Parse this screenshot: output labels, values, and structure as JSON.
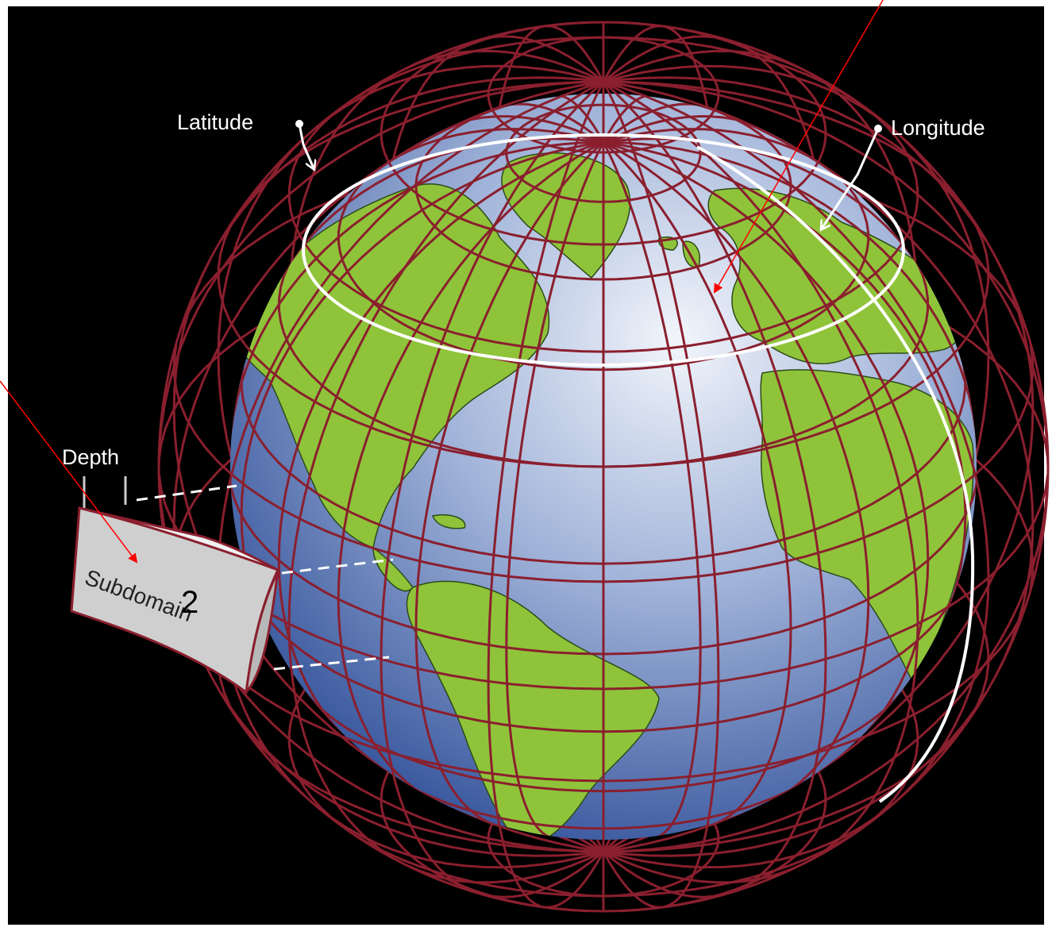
{
  "labels": {
    "latitude": "Latitude",
    "longitude": "Longitude",
    "depth": "Depth",
    "subdomain": "Subdomain",
    "subdomain_number": "2"
  },
  "colors": {
    "background": "#000000",
    "grid": "#8a1f2e",
    "land": "#8fc43a",
    "ocean_light": "#e8eef8",
    "ocean_dark": "#2e4f9a",
    "highlight_ring": "#ffffff",
    "annotation_arrow": "#ff0000",
    "box_face": "#cfcfcf"
  },
  "icons": [
    "latitude-arrow-icon",
    "longitude-arrow-icon",
    "annotation-arrow-icon"
  ]
}
